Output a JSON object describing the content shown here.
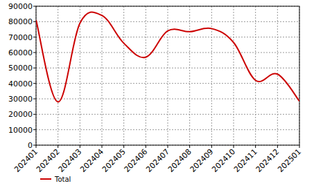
{
  "chart_data": {
    "type": "line",
    "categories": [
      "202401",
      "202402",
      "202403",
      "202404",
      "202405",
      "202406",
      "202407",
      "202408",
      "202409",
      "202410",
      "202411",
      "202412",
      "202501"
    ],
    "series": [
      {
        "name": "Total",
        "color": "#cc0000",
        "values": [
          81000,
          28000,
          79000,
          84000,
          66000,
          57000,
          74000,
          73500,
          75500,
          66500,
          42000,
          46000,
          28500
        ]
      }
    ],
    "ylim": [
      0,
      90000
    ],
    "yticks": [
      0,
      10000,
      20000,
      30000,
      40000,
      50000,
      60000,
      70000,
      80000,
      90000
    ],
    "grid": true,
    "legend": "bottom-left"
  }
}
